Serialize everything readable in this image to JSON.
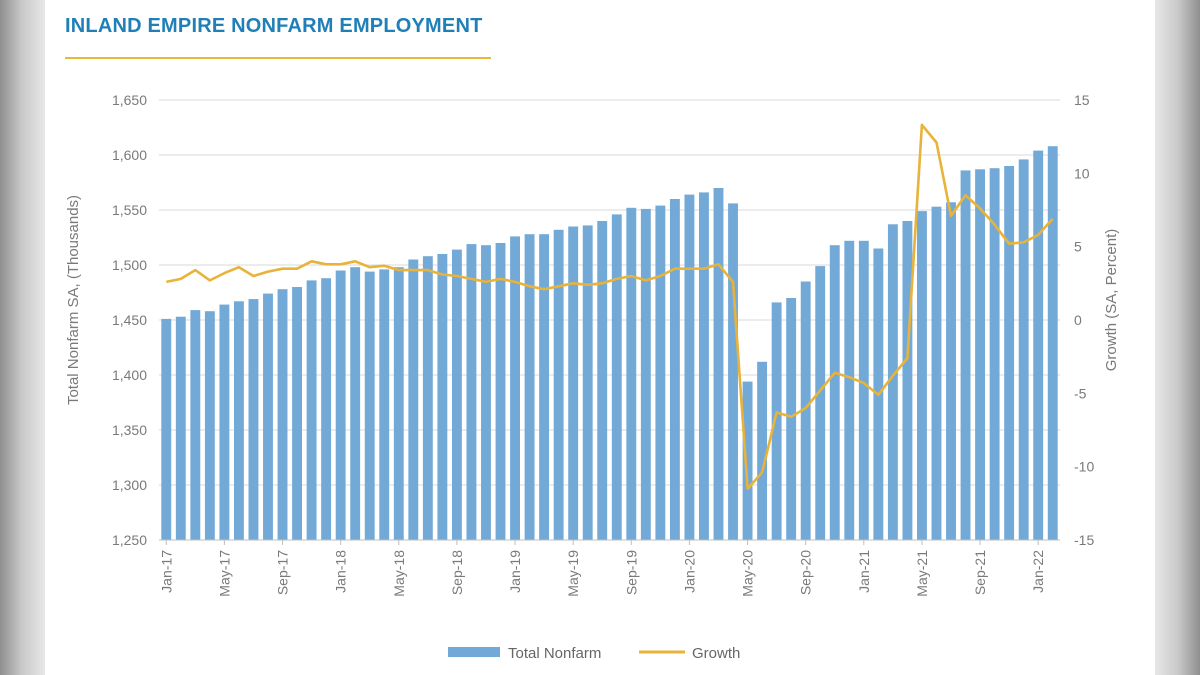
{
  "title": "INLAND EMPIRE NONFARM EMPLOYMENT",
  "colors": {
    "title": "#1f7fb6",
    "rule": "#e8b83a",
    "bars": "#72a9d6",
    "growth": "#e8b33a",
    "grid": "#d9d9d9",
    "text": "#7a7a7a"
  },
  "chart_data": {
    "type": "bar",
    "title": "INLAND EMPIRE NONFARM EMPLOYMENT",
    "xlabel": "",
    "ylabel": "Total Nonfarm SA, (Thousands)",
    "y2label": "Growth (SA, Percent)",
    "ylim": [
      1250,
      1650
    ],
    "y2lim": [
      -15,
      15
    ],
    "yticks": [
      "1,250",
      "1,300",
      "1,350",
      "1,400",
      "1,450",
      "1,500",
      "1,550",
      "1,600",
      "1,650"
    ],
    "y2ticks": [
      "-15",
      "-10",
      "-5",
      "0",
      "5",
      "10",
      "15"
    ],
    "xticks": [
      "Jan-17",
      "May-17",
      "Sep-17",
      "Jan-18",
      "May-18",
      "Sep-18",
      "Jan-19",
      "May-19",
      "Sep-19",
      "Jan-20",
      "May-20",
      "Sep-20",
      "Jan-21",
      "May-21",
      "Sep-21",
      "Jan-22"
    ],
    "categories": [
      "Jan-17",
      "Feb-17",
      "Mar-17",
      "Apr-17",
      "May-17",
      "Jun-17",
      "Jul-17",
      "Aug-17",
      "Sep-17",
      "Oct-17",
      "Nov-17",
      "Dec-17",
      "Jan-18",
      "Feb-18",
      "Mar-18",
      "Apr-18",
      "May-18",
      "Jun-18",
      "Jul-18",
      "Aug-18",
      "Sep-18",
      "Oct-18",
      "Nov-18",
      "Dec-18",
      "Jan-19",
      "Feb-19",
      "Mar-19",
      "Apr-19",
      "May-19",
      "Jun-19",
      "Jul-19",
      "Aug-19",
      "Sep-19",
      "Oct-19",
      "Nov-19",
      "Dec-19",
      "Jan-20",
      "Feb-20",
      "Mar-20",
      "Apr-20",
      "May-20",
      "Jun-20",
      "Jul-20",
      "Aug-20",
      "Sep-20",
      "Oct-20",
      "Nov-20",
      "Dec-20",
      "Jan-21",
      "Feb-21",
      "Mar-21",
      "Apr-21",
      "May-21",
      "Jun-21",
      "Jul-21",
      "Aug-21",
      "Sep-21",
      "Oct-21",
      "Nov-21",
      "Dec-21",
      "Jan-22",
      "Feb-22"
    ],
    "series": [
      {
        "name": "Total Nonfarm",
        "type": "bar",
        "axis": "left",
        "values": [
          1451,
          1453,
          1459,
          1458,
          1464,
          1467,
          1469,
          1474,
          1478,
          1480,
          1486,
          1488,
          1495,
          1498,
          1494,
          1496,
          1498,
          1505,
          1508,
          1510,
          1514,
          1519,
          1518,
          1520,
          1526,
          1528,
          1528,
          1532,
          1535,
          1536,
          1540,
          1546,
          1552,
          1551,
          1554,
          1560,
          1564,
          1566,
          1570,
          1556,
          1394,
          1412,
          1466,
          1470,
          1485,
          1499,
          1518,
          1522,
          1522,
          1515,
          1537,
          1540,
          1549,
          1553,
          1557,
          1586,
          1587,
          1588,
          1590,
          1596,
          1604,
          1608
        ]
      },
      {
        "name": "Growth",
        "type": "line",
        "axis": "right",
        "values": [
          2.6,
          2.8,
          3.4,
          2.7,
          3.2,
          3.6,
          3.0,
          3.3,
          3.5,
          3.5,
          4.0,
          3.8,
          3.8,
          4.0,
          3.6,
          3.7,
          3.4,
          3.4,
          3.4,
          3.1,
          3.0,
          2.8,
          2.6,
          2.8,
          2.6,
          2.3,
          2.1,
          2.3,
          2.5,
          2.4,
          2.5,
          2.8,
          3.0,
          2.7,
          3.0,
          3.5,
          3.5,
          3.5,
          3.8,
          2.6,
          -11.5,
          -10.4,
          -6.3,
          -6.6,
          -6.0,
          -4.8,
          -3.6,
          -3.9,
          -4.3,
          -5.1,
          -3.8,
          -2.6,
          13.3,
          12.1,
          7.1,
          8.5,
          7.6,
          6.5,
          5.2,
          5.3,
          5.8,
          6.9
        ]
      }
    ],
    "legend": {
      "position": "bottom-center"
    },
    "grid": true
  }
}
